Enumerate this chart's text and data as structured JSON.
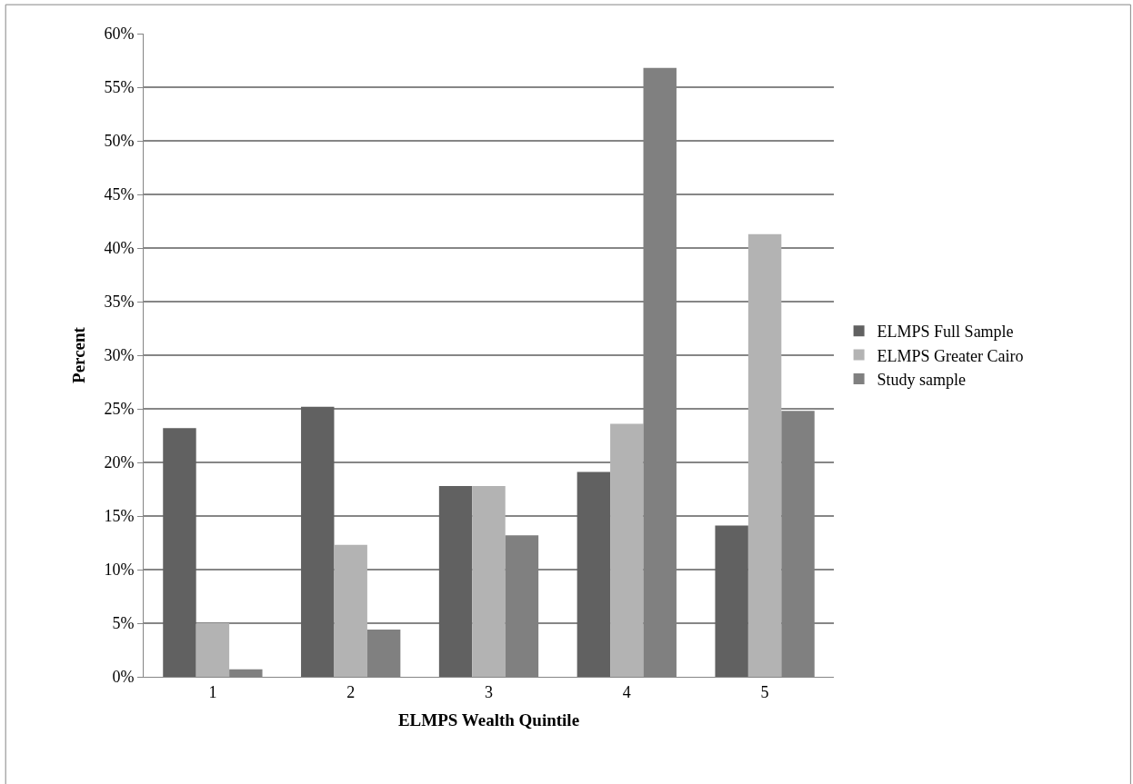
{
  "chart_data": {
    "type": "bar",
    "xlabel": "ELMPS Wealth Quintile",
    "ylabel": "Percent",
    "categories": [
      "1",
      "2",
      "3",
      "4",
      "5"
    ],
    "series": [
      {
        "name": "ELMPS Full Sample",
        "color": "#616161",
        "values": [
          23.2,
          25.2,
          17.8,
          19.1,
          14.1
        ]
      },
      {
        "name": "ELMPS Greater Cairo",
        "color": "#b3b3b3",
        "values": [
          5.0,
          12.3,
          17.8,
          23.6,
          41.3
        ]
      },
      {
        "name": "Study sample",
        "color": "#808080",
        "values": [
          0.7,
          4.4,
          13.2,
          56.8,
          24.8
        ]
      }
    ],
    "ylim": [
      0,
      60
    ],
    "yticks": [
      {
        "value": 0,
        "label": "0%"
      },
      {
        "value": 5,
        "label": "5%"
      },
      {
        "value": 10,
        "label": "10%"
      },
      {
        "value": 15,
        "label": "15%"
      },
      {
        "value": 20,
        "label": "20%"
      },
      {
        "value": 25,
        "label": "25%"
      },
      {
        "value": 30,
        "label": "30%"
      },
      {
        "value": 35,
        "label": "35%"
      },
      {
        "value": 40,
        "label": "40%"
      },
      {
        "value": 45,
        "label": "45%"
      },
      {
        "value": 50,
        "label": "50%"
      },
      {
        "value": 55,
        "label": "55%"
      },
      {
        "value": 60,
        "label": "60%"
      }
    ],
    "grid": "y",
    "legend": "right"
  }
}
